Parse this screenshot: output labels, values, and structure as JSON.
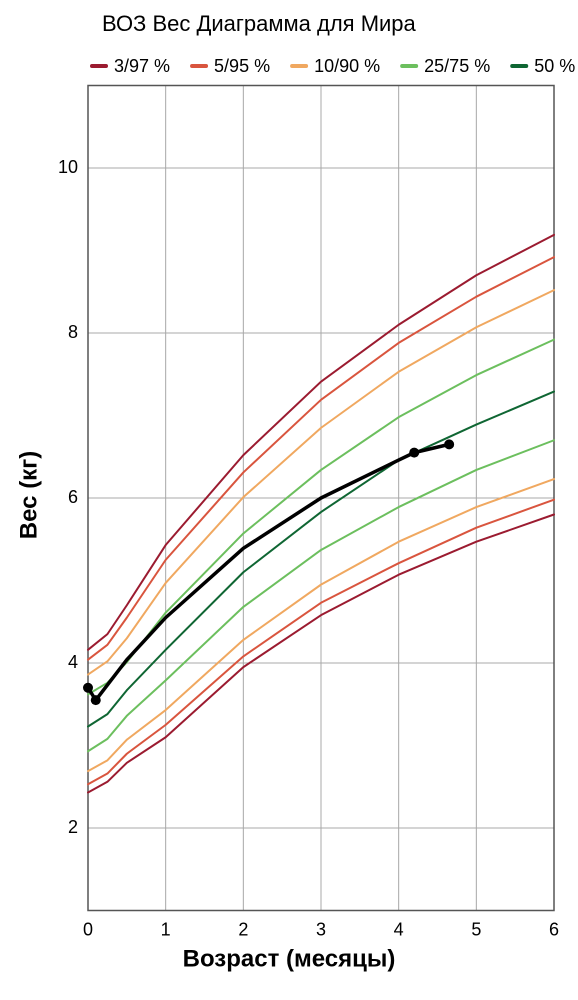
{
  "chart_data": {
    "type": "line",
    "title": "ВОЗ Вес Диаграмма для Мира",
    "x_label": "Возраст (месяцы)",
    "y_label": "Вес (кг)",
    "xlim": [
      0,
      6
    ],
    "ylim": [
      1,
      11
    ],
    "xticks": [
      0,
      1,
      2,
      3,
      4,
      5,
      6
    ],
    "yticks": [
      2,
      4,
      6,
      8,
      10
    ],
    "grid": true,
    "legend": [
      {
        "name": "3/97 %",
        "color": "#9b1b30"
      },
      {
        "name": "5/95 %",
        "color": "#d9553e"
      },
      {
        "name": "10/90 %",
        "color": "#f0a860"
      },
      {
        "name": "25/75 %",
        "color": "#6cbf5e"
      },
      {
        "name": "50 %",
        "color": "#0f6633"
      }
    ],
    "x": [
      0,
      0.25,
      0.5,
      1,
      2,
      3,
      4,
      5,
      6
    ],
    "series": [
      {
        "color": "#9b1b30",
        "values": [
          4.16,
          4.35,
          4.7,
          5.43,
          6.52,
          7.41,
          8.1,
          8.7,
          9.19
        ]
      },
      {
        "color": "#d9553e",
        "values": [
          4.04,
          4.22,
          4.55,
          5.25,
          6.31,
          7.19,
          7.88,
          8.44,
          8.92
        ]
      },
      {
        "color": "#f0a860",
        "values": [
          3.86,
          4.02,
          4.3,
          4.97,
          6.01,
          6.85,
          7.53,
          8.07,
          8.52
        ]
      },
      {
        "color": "#6cbf5e",
        "values": [
          3.62,
          3.76,
          4.01,
          4.61,
          5.57,
          6.34,
          6.98,
          7.49,
          7.92
        ]
      },
      {
        "color": "#0f6633",
        "values": [
          3.23,
          3.38,
          3.67,
          4.16,
          5.1,
          5.83,
          6.46,
          6.89,
          7.29
        ]
      },
      {
        "color": "#6cbf5e",
        "values": [
          2.93,
          3.08,
          3.36,
          3.79,
          4.68,
          5.37,
          5.89,
          6.34,
          6.7
        ]
      },
      {
        "color": "#f0a860",
        "values": [
          2.69,
          2.82,
          3.07,
          3.43,
          4.28,
          4.95,
          5.47,
          5.89,
          6.23
        ]
      },
      {
        "color": "#d9553e",
        "values": [
          2.53,
          2.66,
          2.9,
          3.25,
          4.08,
          4.73,
          5.21,
          5.64,
          5.98
        ]
      },
      {
        "color": "#9b1b30",
        "values": [
          2.43,
          2.56,
          2.79,
          3.1,
          3.95,
          4.58,
          5.07,
          5.47,
          5.8
        ]
      }
    ],
    "child": {
      "color": "#000000",
      "x": [
        0,
        0.1,
        0.5,
        1,
        2,
        3,
        4,
        4.2,
        4.65
      ],
      "values": [
        3.7,
        3.55,
        4.04,
        4.55,
        5.39,
        6.0,
        6.46,
        6.55,
        6.65
      ]
    },
    "measurements": {
      "color": "#000000",
      "x": [
        0,
        0.1,
        4.2,
        4.65
      ],
      "values": [
        3.7,
        3.55,
        6.55,
        6.65
      ]
    }
  }
}
